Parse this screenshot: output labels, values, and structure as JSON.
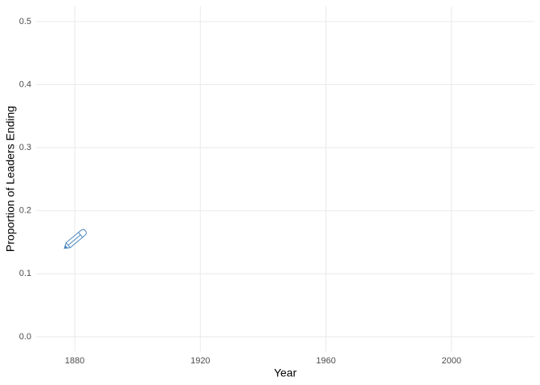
{
  "chart_data": {
    "type": "line",
    "x_label": "Year",
    "y_label": "Proportion of Leaders Ending",
    "xlim": [
      1867.7,
      2026.4
    ],
    "xticks": [
      1880,
      1920,
      1960,
      2000
    ],
    "ylim": [
      -0.023,
      0.524
    ],
    "yticks": [
      {
        "value": 0,
        "label": "0.0"
      },
      0.1,
      0.2,
      0.3,
      0.4,
      0.5
    ],
    "grid": true
  }
}
